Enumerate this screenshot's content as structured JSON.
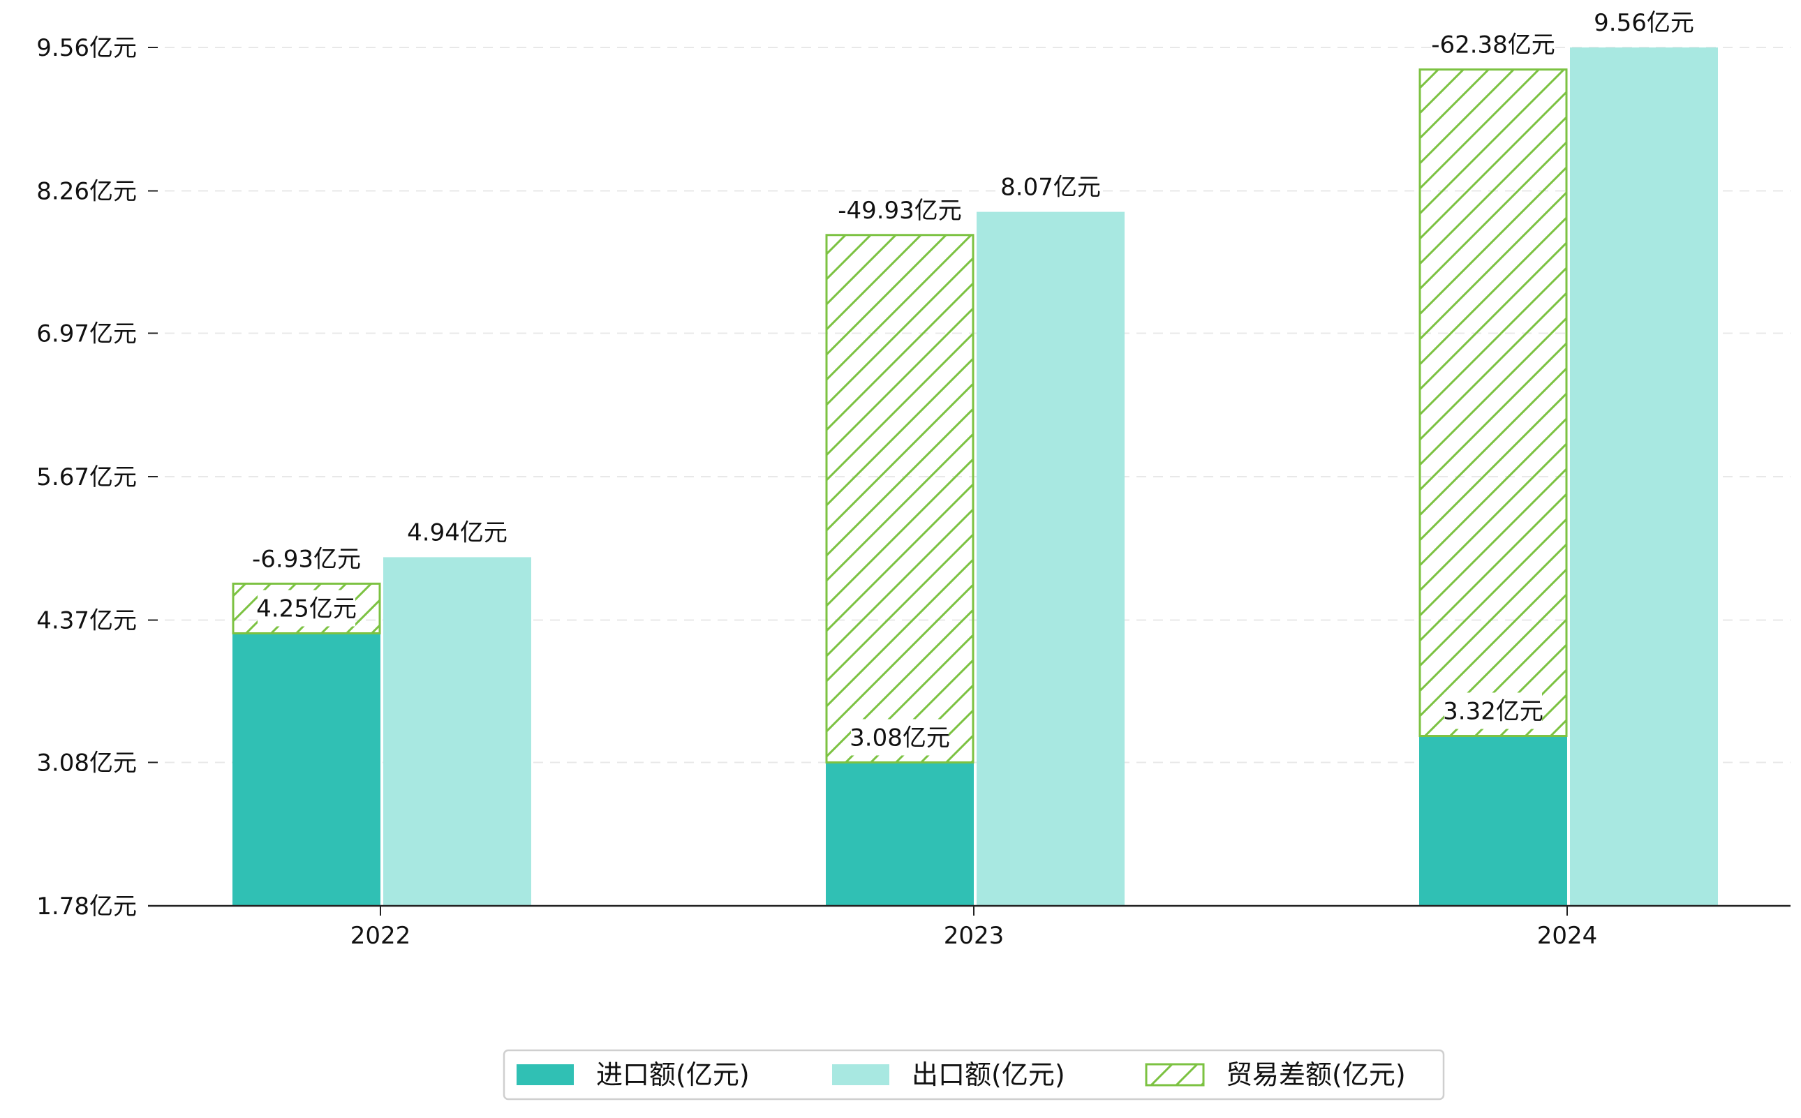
{
  "chart_data": {
    "type": "bar",
    "categories": [
      "2022",
      "2023",
      "2024"
    ],
    "series": [
      {
        "name": "进口额(亿元)",
        "values": [
          4.25,
          3.08,
          3.32
        ],
        "color": "#30c0b4"
      },
      {
        "name": "出口额(亿元)",
        "values": [
          4.94,
          8.07,
          9.56
        ],
        "color": "#a8e8e1"
      },
      {
        "name": "贸易差额(亿元)",
        "values": [
          -6.93,
          -49.93,
          -62.38
        ],
        "color": "#7cc242",
        "pattern": "hatch"
      }
    ],
    "data_labels": {
      "import": [
        "4.25亿元",
        "3.08亿元",
        "3.32亿元"
      ],
      "export": [
        "4.94亿元",
        "8.07亿元",
        "9.56亿元"
      ],
      "balance": [
        "-6.93亿元",
        "-49.93亿元",
        "-62.38亿元"
      ]
    },
    "balance_bar_tops": [
      4.7,
      7.86,
      9.36
    ],
    "yticks": [
      "1.78亿元",
      "3.08亿元",
      "4.37亿元",
      "5.67亿元",
      "6.97亿元",
      "8.26亿元",
      "9.56亿元"
    ],
    "ytick_values": [
      1.78,
      3.08,
      4.37,
      5.67,
      6.97,
      8.26,
      9.56
    ],
    "ylim": [
      1.78,
      9.56
    ],
    "grid": true,
    "legend_position": "bottom-center"
  }
}
